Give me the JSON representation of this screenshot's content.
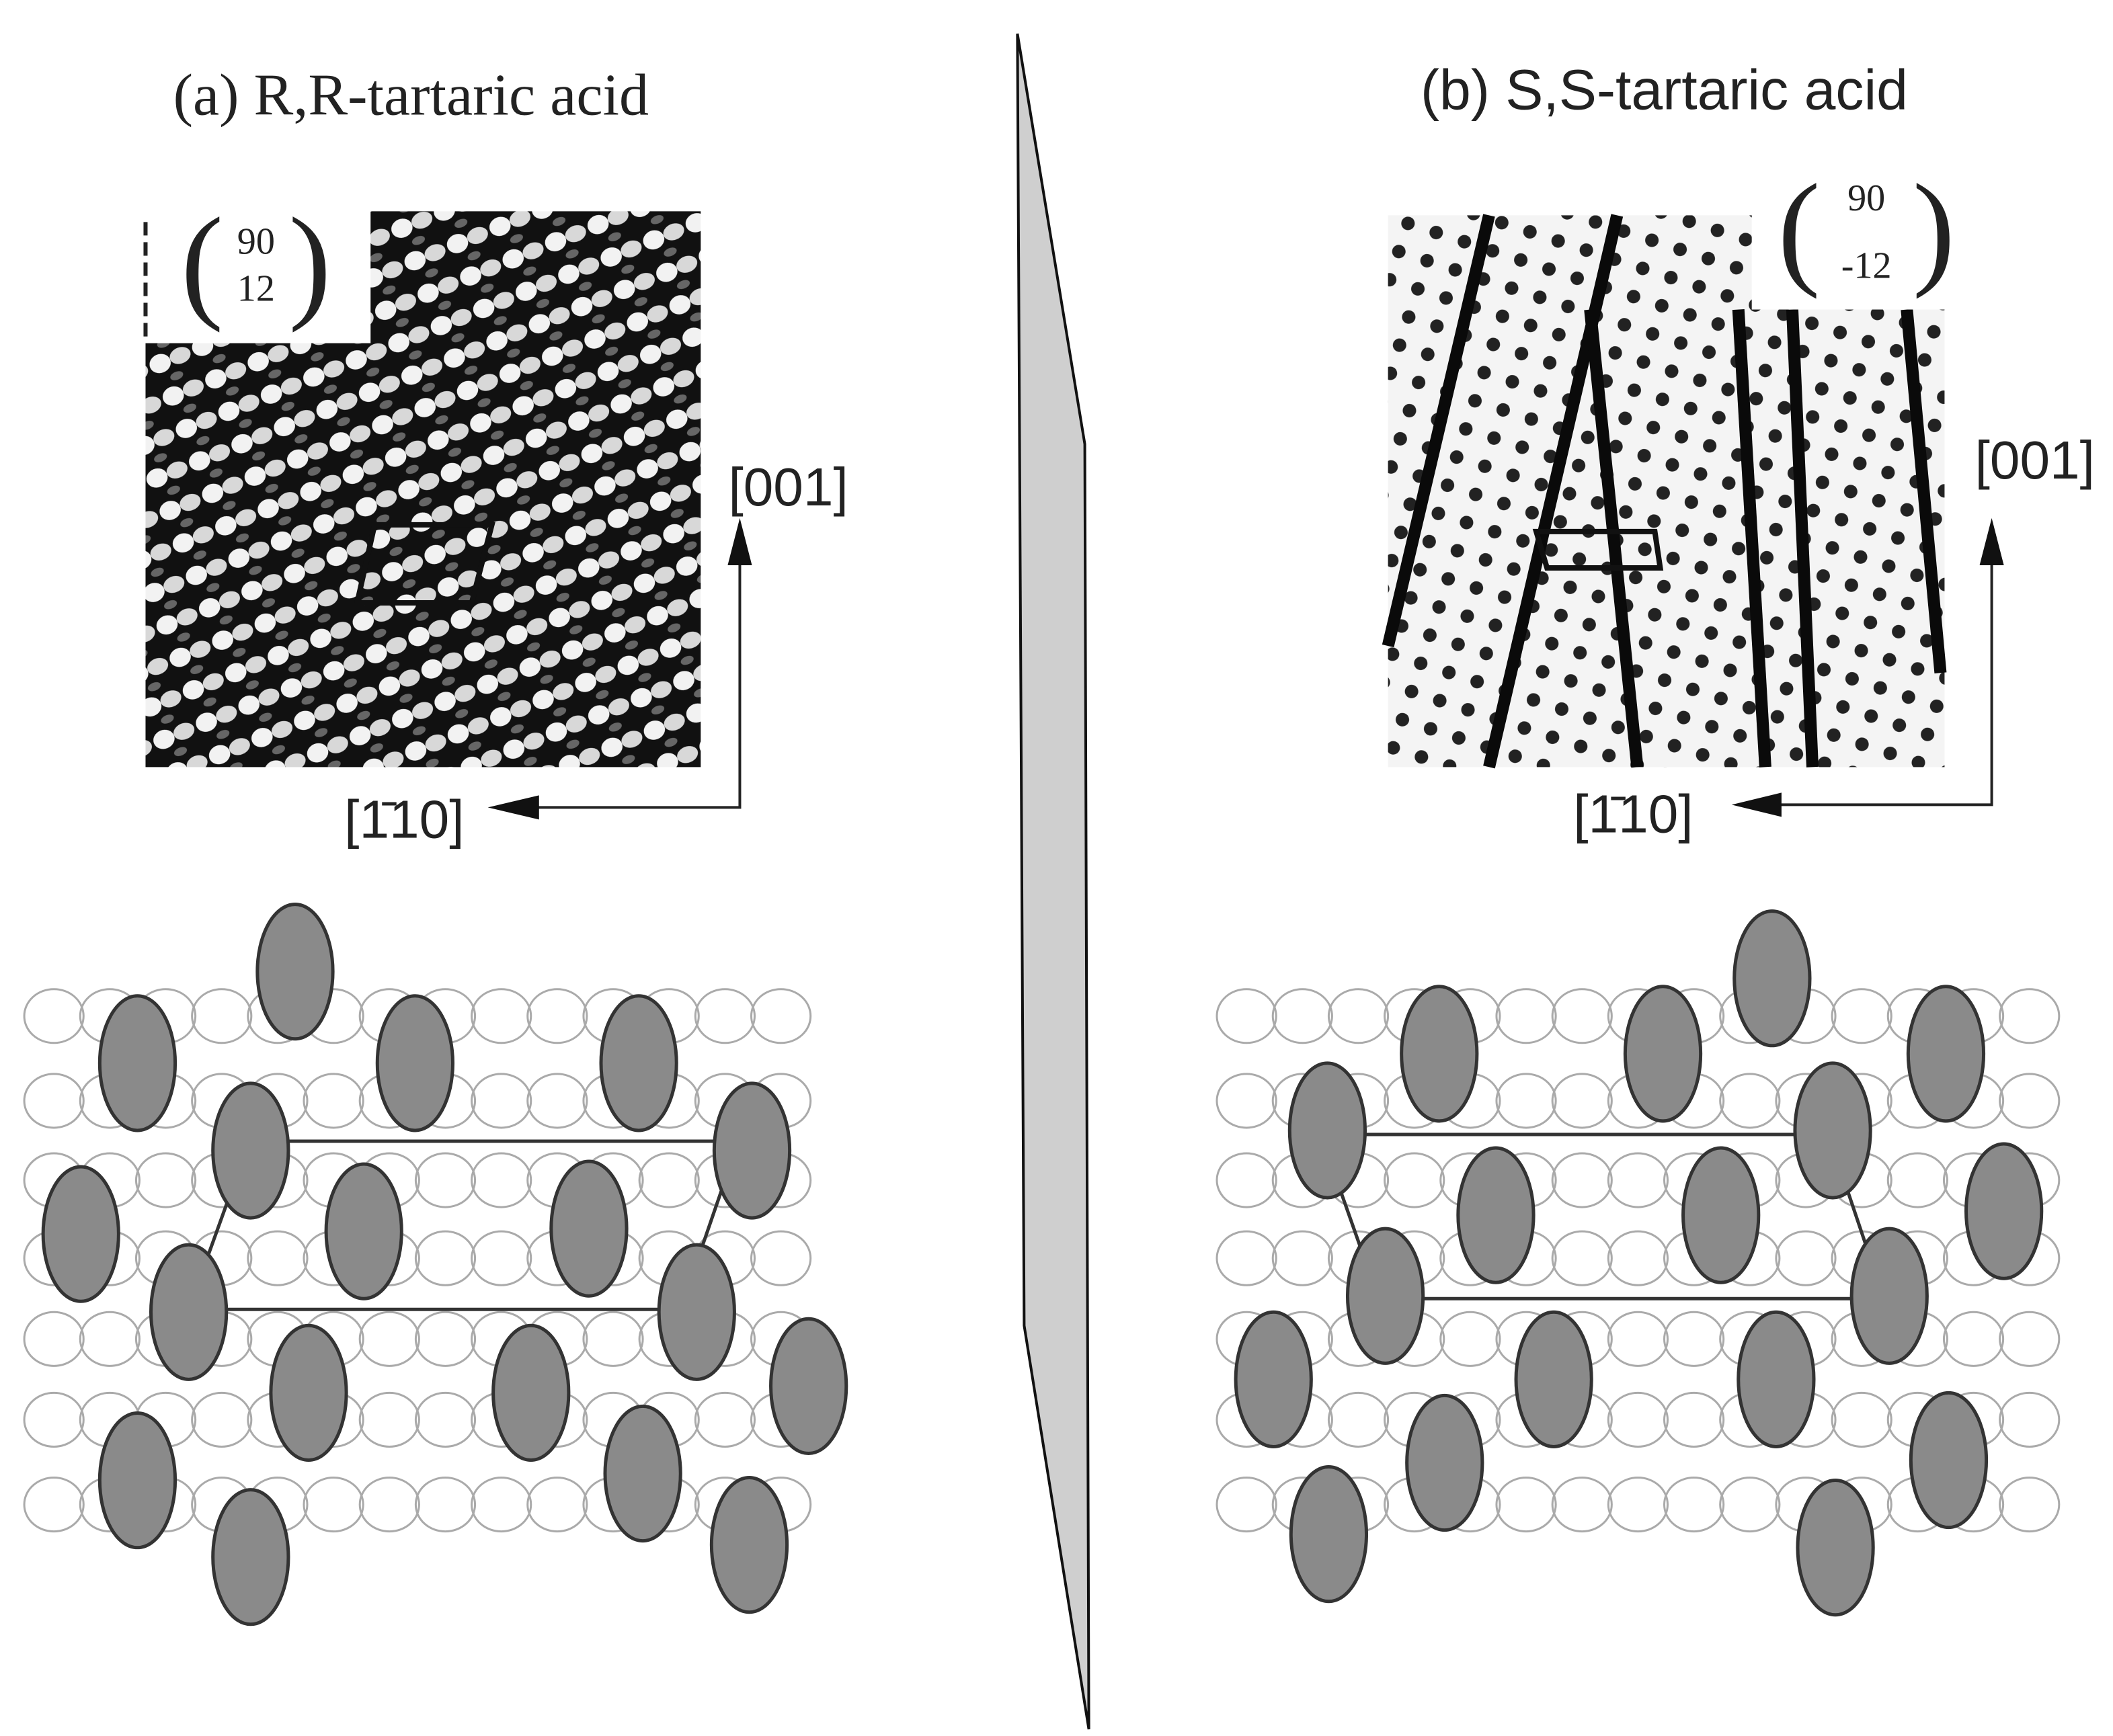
{
  "panels": [
    {
      "title": "(a) R,R-tartaric acid",
      "matrix": {
        "top": "90",
        "bottom": "12"
      },
      "axis_vertical": "[001]",
      "axis_horizontal": "[1̄10]"
    },
    {
      "title": "(b) S,S-tartaric acid",
      "matrix": {
        "top": "90",
        "bottom": "-12"
      },
      "axis_vertical": "[001]",
      "axis_horizontal": "[1̄10]"
    }
  ]
}
